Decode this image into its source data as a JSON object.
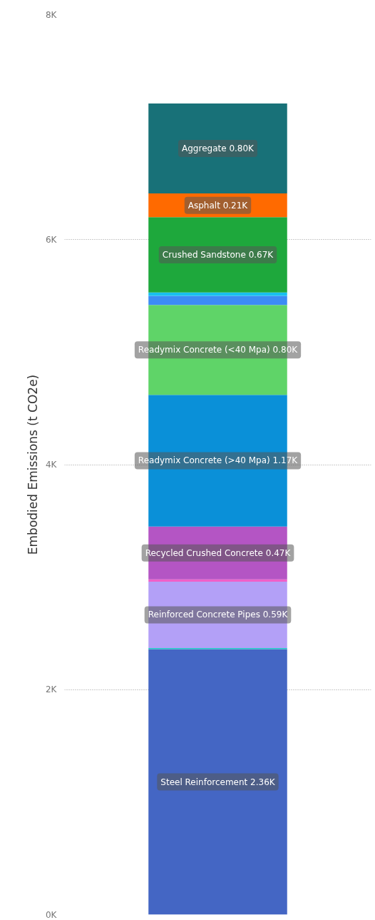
{
  "chart_data": {
    "type": "bar",
    "stacked": true,
    "categories": [
      null
    ],
    "ylabel": "Embodied Emissions (t CO2e)",
    "ylim": [
      0,
      8
    ],
    "yticks": [
      {
        "value": 0,
        "label": "0K"
      },
      {
        "value": 2,
        "label": "2K"
      },
      {
        "value": 4,
        "label": "4K"
      },
      {
        "value": 6,
        "label": "6K"
      },
      {
        "value": 8,
        "label": "8K"
      }
    ],
    "grid": "y",
    "series": [
      {
        "name": "Steel Reinforcement",
        "color": "#4466c4",
        "values": [
          2.36
        ],
        "value_labels": [
          "2.36K"
        ]
      },
      {
        "color": "#1ec8c8",
        "values": [
          0.01
        ],
        "value_labels": [
          null
        ]
      },
      {
        "name": "Reinforced Concrete Pipes",
        "color": "#b3a0f7",
        "values": [
          0.59
        ],
        "value_labels": [
          "0.59K"
        ]
      },
      {
        "color": "#f060c8",
        "values": [
          0.02
        ],
        "value_labels": [
          null
        ]
      },
      {
        "name": "Recycled Crushed Concrete",
        "color": "#b455c4",
        "values": [
          0.47
        ],
        "value_labels": [
          "0.47K"
        ]
      },
      {
        "name": "Readymix Concrete (>40 Mpa)",
        "color": "#0a90d8",
        "values": [
          1.17
        ],
        "value_labels": [
          "1.17K"
        ]
      },
      {
        "name": "Readymix Concrete (<40 Mpa)",
        "color": "#5fd468",
        "values": [
          0.8
        ],
        "value_labels": [
          "0.80K"
        ]
      },
      {
        "color": "#3c8cf5",
        "values": [
          0.08
        ],
        "value_labels": [
          null
        ]
      },
      {
        "color": "#18c0f0",
        "values": [
          0.03
        ],
        "value_labels": [
          null
        ]
      },
      {
        "name": "Crushed Sandstone",
        "color": "#1ea83c",
        "values": [
          0.67
        ],
        "value_labels": [
          "0.67K"
        ]
      },
      {
        "name": "Asphalt",
        "color": "#ff6a00",
        "values": [
          0.21
        ],
        "value_labels": [
          "0.21K"
        ]
      },
      {
        "name": "Aggregate",
        "color": "#187178",
        "values": [
          0.8
        ],
        "value_labels": [
          "0.80K"
        ]
      }
    ]
  }
}
